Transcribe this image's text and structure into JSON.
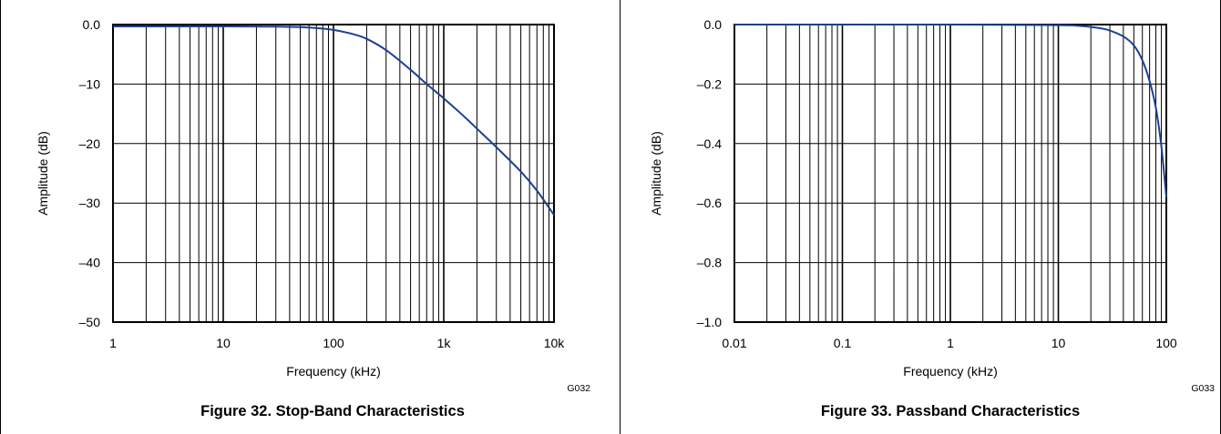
{
  "chart_data": [
    {
      "type": "line",
      "title": "Figure 32. Stop-Band Characteristics",
      "code": "G032",
      "xlabel": "Frequency (kHz)",
      "ylabel": "Amplitude (dB)",
      "xscale": "log",
      "xlim": [
        1,
        10000
      ],
      "ylim": [
        -50,
        0
      ],
      "grid": true,
      "xticks": [
        1,
        10,
        100,
        1000,
        10000
      ],
      "xtick_labels": [
        "1",
        "10",
        "100",
        "1k",
        "10k"
      ],
      "yticks": [
        0,
        -10,
        -20,
        -30,
        -40,
        -50
      ],
      "ytick_labels": [
        "0.0",
        "–10",
        "–20",
        "–30",
        "–40",
        "–50"
      ],
      "series": [
        {
          "color": "#1f3f8f",
          "x": [
            1,
            10,
            30,
            60,
            100,
            150,
            200,
            300,
            500,
            700,
            1000,
            1500,
            2000,
            3000,
            5000,
            7000,
            10000
          ],
          "y": [
            -0.3,
            -0.3,
            -0.35,
            -0.5,
            -0.9,
            -1.6,
            -2.4,
            -4.3,
            -7.6,
            -10.0,
            -12.4,
            -15.3,
            -17.5,
            -20.6,
            -24.7,
            -27.9,
            -32.0
          ]
        }
      ]
    },
    {
      "type": "line",
      "title": "Figure 33. Passband Characteristics",
      "code": "G033",
      "xlabel": "Frequency (kHz)",
      "ylabel": "Amplitude (dB)",
      "xscale": "log",
      "xlim": [
        0.01,
        100
      ],
      "ylim": [
        -1.0,
        0
      ],
      "grid": true,
      "xticks": [
        0.01,
        0.1,
        1,
        10,
        100
      ],
      "xtick_labels": [
        "0.01",
        "0.1",
        "1",
        "10",
        "100"
      ],
      "yticks": [
        0,
        -0.2,
        -0.4,
        -0.6,
        -0.8,
        -1.0
      ],
      "ytick_labels": [
        "0.0",
        "–0.2",
        "–0.4",
        "–0.6",
        "–0.8",
        "–1.0"
      ],
      "series": [
        {
          "color": "#1f3f8f",
          "x": [
            0.01,
            1,
            10,
            15,
            20,
            25,
            30,
            40,
            50,
            60,
            70,
            80,
            90,
            100
          ],
          "y": [
            0.0,
            0.0,
            -0.002,
            -0.004,
            -0.008,
            -0.013,
            -0.02,
            -0.04,
            -0.07,
            -0.12,
            -0.19,
            -0.28,
            -0.41,
            -0.58
          ]
        }
      ]
    }
  ]
}
